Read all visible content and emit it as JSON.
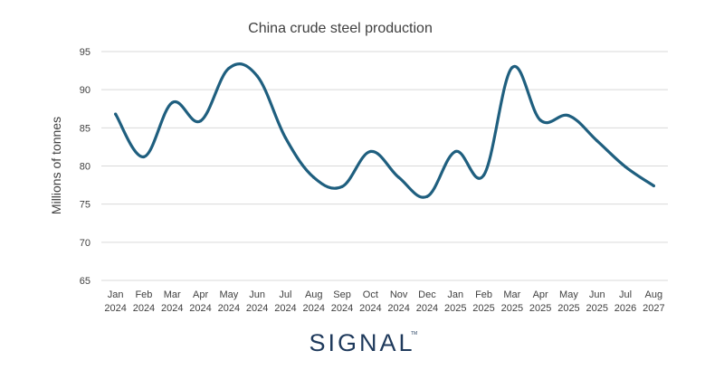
{
  "chart_data": {
    "type": "line",
    "title": "China crude steel production",
    "xlabel": "",
    "ylabel": "Millions of tonnes",
    "ylim": [
      65,
      95
    ],
    "yticks": [
      65,
      70,
      75,
      80,
      85,
      90,
      95
    ],
    "grid": true,
    "legend": "none",
    "categories": [
      {
        "month": "Jan",
        "year": "2024"
      },
      {
        "month": "Feb",
        "year": "2024"
      },
      {
        "month": "Mar",
        "year": "2024"
      },
      {
        "month": "Apr",
        "year": "2024"
      },
      {
        "month": "May",
        "year": "2024"
      },
      {
        "month": "Jun",
        "year": "2024"
      },
      {
        "month": "Jul",
        "year": "2024"
      },
      {
        "month": "Aug",
        "year": "2024"
      },
      {
        "month": "Sep",
        "year": "2024"
      },
      {
        "month": "Oct",
        "year": "2024"
      },
      {
        "month": "Nov",
        "year": "2024"
      },
      {
        "month": "Dec",
        "year": "2024"
      },
      {
        "month": "Jan",
        "year": "2025"
      },
      {
        "month": "Feb",
        "year": "2025"
      },
      {
        "month": "Mar",
        "year": "2025"
      },
      {
        "month": "Apr",
        "year": "2025"
      },
      {
        "month": "May",
        "year": "2025"
      },
      {
        "month": "Jun",
        "year": "2025"
      },
      {
        "month": "Jul",
        "year": "2026"
      },
      {
        "month": "Aug",
        "year": "2027"
      }
    ],
    "series": [
      {
        "color": "#1f5f7f",
        "values": [
          86.8,
          81.2,
          88.3,
          85.9,
          92.8,
          91.8,
          83.7,
          78.5,
          77.3,
          81.9,
          78.5,
          76.0,
          81.9,
          78.8,
          92.9,
          86.0,
          86.6,
          83.3,
          79.9,
          77.4
        ]
      }
    ]
  },
  "brand": {
    "logo_text": "SIGNAL",
    "trademark": "TM",
    "color": "#1f3a5c"
  }
}
